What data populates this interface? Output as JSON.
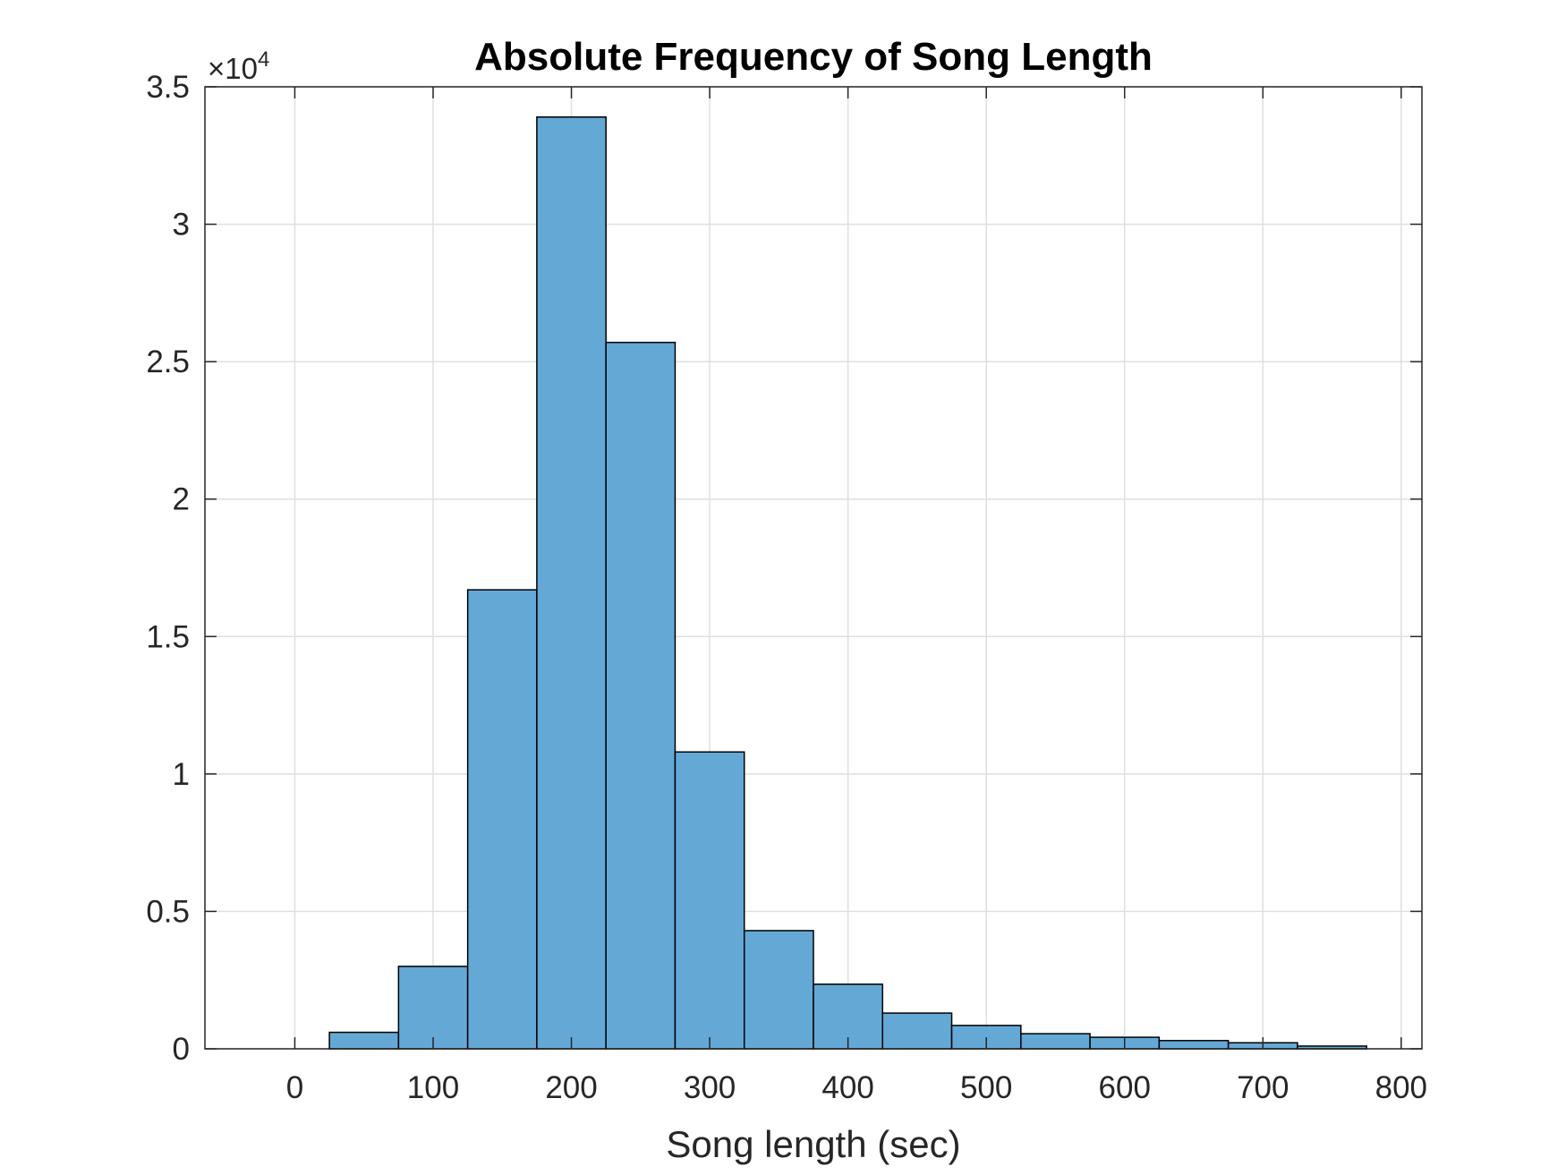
{
  "chart_data": {
    "type": "bar",
    "title": "Absolute Frequency of Song Length",
    "xlabel": "Song length (sec)",
    "ylabel": "",
    "y_exponent_label": "×10",
    "y_exponent_power": "4",
    "xlim": [
      -65,
      815
    ],
    "ylim": [
      0,
      3.5
    ],
    "x_ticks": [
      0,
      100,
      200,
      300,
      400,
      500,
      600,
      700,
      800
    ],
    "x_tick_labels": [
      "0",
      "100",
      "200",
      "300",
      "400",
      "500",
      "600",
      "700",
      "800"
    ],
    "y_ticks": [
      0,
      0.5,
      1,
      1.5,
      2,
      2.5,
      3,
      3.5
    ],
    "y_tick_labels": [
      "0",
      "0.5",
      "1",
      "1.5",
      "2",
      "2.5",
      "3",
      "3.5"
    ],
    "grid": true,
    "bar_color": "#64a8d6",
    "edge_color": "#000000",
    "bin_edges": [
      25,
      75,
      125,
      175,
      225,
      275,
      325,
      375,
      425,
      475,
      525,
      575,
      625,
      675,
      725,
      775
    ],
    "values": [
      0.06,
      0.3,
      1.67,
      3.39,
      2.57,
      1.08,
      0.43,
      0.235,
      0.13,
      0.085,
      0.055,
      0.042,
      0.03,
      0.022,
      0.01
    ]
  }
}
